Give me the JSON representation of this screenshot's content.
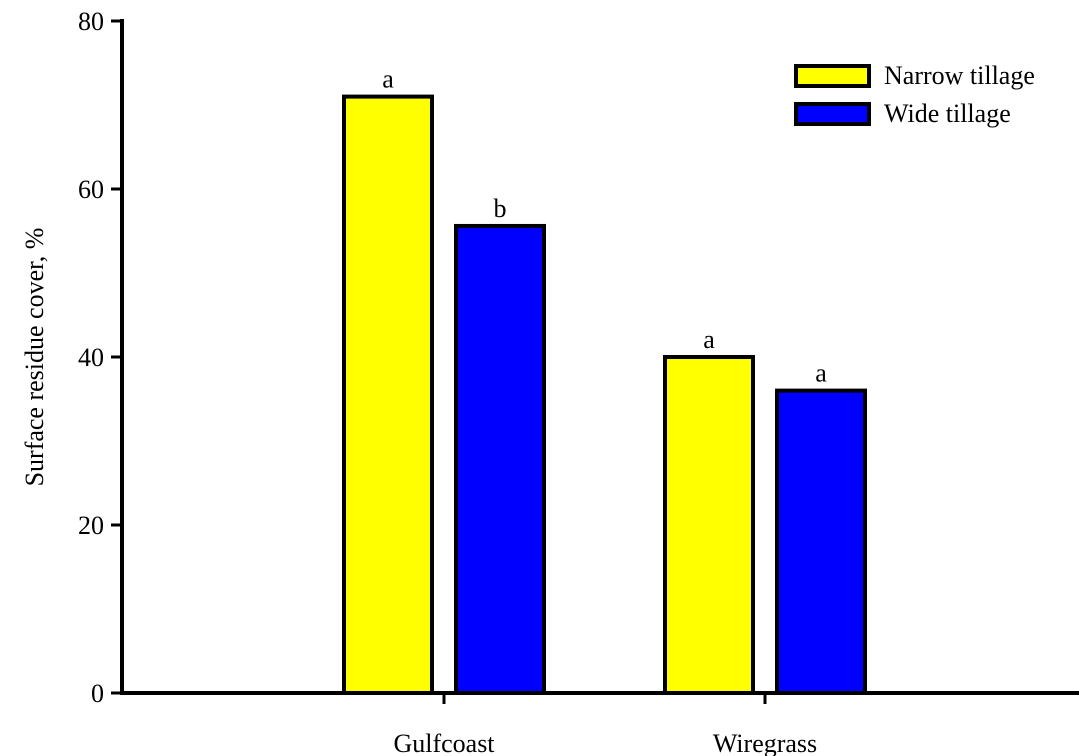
{
  "chart_data": {
    "type": "bar",
    "title": "",
    "xlabel": "",
    "ylabel": "Surface residue cover, %",
    "ylim": [
      0,
      80
    ],
    "yticks": [
      0,
      20,
      40,
      60,
      80
    ],
    "categories": [
      "Gulfcoast",
      "Wiregrass"
    ],
    "series": [
      {
        "name": "Narrow tillage",
        "color": "#ffff00",
        "values": [
          71,
          40
        ],
        "letters": [
          "a",
          "a"
        ]
      },
      {
        "name": "Wide tillage",
        "color": "#0000ff",
        "values": [
          55.6,
          36
        ],
        "letters": [
          "b",
          "a"
        ]
      }
    ],
    "legend_position": "top-right",
    "grid": false
  }
}
